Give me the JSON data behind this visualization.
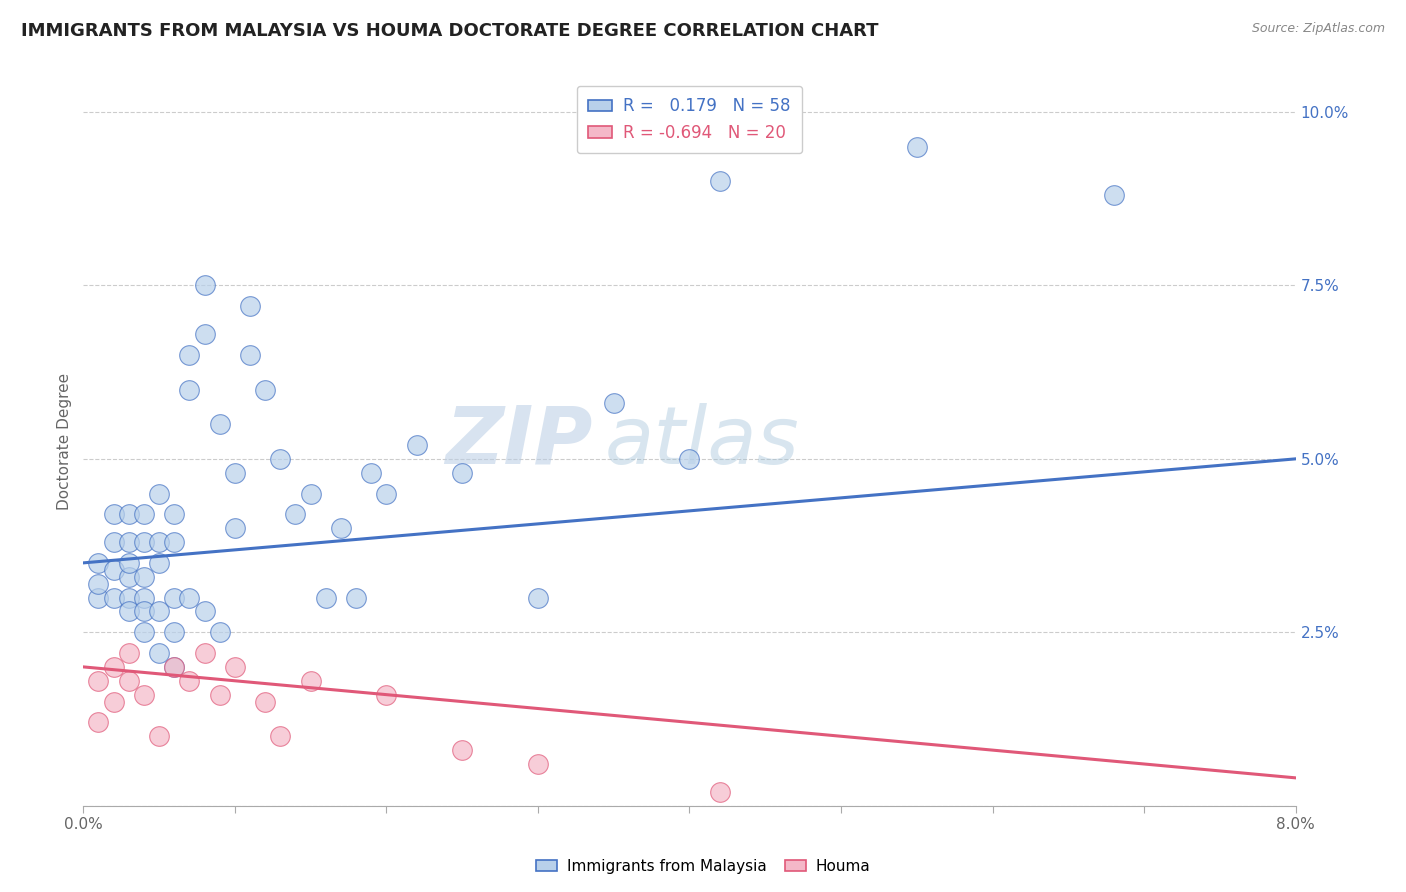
{
  "title": "IMMIGRANTS FROM MALAYSIA VS HOUMA DOCTORATE DEGREE CORRELATION CHART",
  "source": "Source: ZipAtlas.com",
  "ylabel": "Doctorate Degree",
  "xlim": [
    0.0,
    0.08
  ],
  "ylim": [
    0.0,
    0.105
  ],
  "xticks": [
    0.0,
    0.01,
    0.02,
    0.03,
    0.04,
    0.05,
    0.06,
    0.07,
    0.08
  ],
  "xtick_labels": [
    "0.0%",
    "",
    "",
    "",
    "",
    "",
    "",
    "",
    "8.0%"
  ],
  "yticks": [
    0.0,
    0.025,
    0.05,
    0.075,
    0.1
  ],
  "ytick_labels": [
    "",
    "2.5%",
    "5.0%",
    "7.5%",
    "10.0%"
  ],
  "blue_r": "0.179",
  "blue_n": "58",
  "pink_r": "-0.694",
  "pink_n": "20",
  "blue_color": "#b8d0ea",
  "pink_color": "#f4b8c8",
  "blue_line_color": "#4472c4",
  "pink_line_color": "#e05878",
  "blue_scatter_x": [
    0.001,
    0.001,
    0.001,
    0.002,
    0.002,
    0.002,
    0.002,
    0.003,
    0.003,
    0.003,
    0.003,
    0.003,
    0.003,
    0.004,
    0.004,
    0.004,
    0.004,
    0.004,
    0.004,
    0.005,
    0.005,
    0.005,
    0.005,
    0.005,
    0.006,
    0.006,
    0.006,
    0.006,
    0.006,
    0.007,
    0.007,
    0.007,
    0.008,
    0.008,
    0.008,
    0.009,
    0.009,
    0.01,
    0.01,
    0.011,
    0.011,
    0.012,
    0.013,
    0.014,
    0.015,
    0.016,
    0.017,
    0.018,
    0.019,
    0.02,
    0.022,
    0.025,
    0.03,
    0.035,
    0.04,
    0.042,
    0.055,
    0.068
  ],
  "blue_scatter_y": [
    0.03,
    0.032,
    0.035,
    0.03,
    0.034,
    0.038,
    0.042,
    0.03,
    0.033,
    0.038,
    0.042,
    0.035,
    0.028,
    0.03,
    0.033,
    0.038,
    0.042,
    0.028,
    0.025,
    0.035,
    0.038,
    0.045,
    0.028,
    0.022,
    0.038,
    0.042,
    0.03,
    0.025,
    0.02,
    0.06,
    0.065,
    0.03,
    0.068,
    0.075,
    0.028,
    0.055,
    0.025,
    0.048,
    0.04,
    0.065,
    0.072,
    0.06,
    0.05,
    0.042,
    0.045,
    0.03,
    0.04,
    0.03,
    0.048,
    0.045,
    0.052,
    0.048,
    0.03,
    0.058,
    0.05,
    0.09,
    0.095,
    0.088
  ],
  "pink_scatter_x": [
    0.001,
    0.001,
    0.002,
    0.002,
    0.003,
    0.003,
    0.004,
    0.005,
    0.006,
    0.007,
    0.008,
    0.009,
    0.01,
    0.012,
    0.013,
    0.015,
    0.02,
    0.025,
    0.03,
    0.042
  ],
  "pink_scatter_y": [
    0.018,
    0.012,
    0.02,
    0.015,
    0.018,
    0.022,
    0.016,
    0.01,
    0.02,
    0.018,
    0.022,
    0.016,
    0.02,
    0.015,
    0.01,
    0.018,
    0.016,
    0.008,
    0.006,
    0.002
  ],
  "blue_line_x0": 0.0,
  "blue_line_y0": 0.035,
  "blue_line_x1": 0.08,
  "blue_line_y1": 0.05,
  "pink_line_x0": 0.0,
  "pink_line_y0": 0.02,
  "pink_line_x1": 0.08,
  "pink_line_y1": 0.004,
  "watermark_zip": "ZIP",
  "watermark_atlas": "atlas",
  "background_color": "#ffffff",
  "grid_color": "#cccccc"
}
